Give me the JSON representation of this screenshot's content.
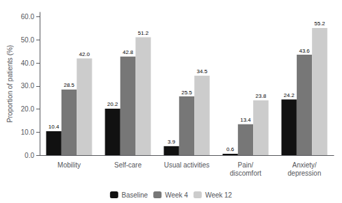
{
  "chart_data": {
    "type": "bar",
    "categories": [
      "Mobility",
      "Self-care",
      "Usual activities",
      "Pain/\ndiscomfort",
      "Anxiety/\ndepression"
    ],
    "series": [
      {
        "name": "Baseline",
        "color": "#111111",
        "values": [
          10.4,
          20.2,
          3.9,
          0.6,
          24.2
        ]
      },
      {
        "name": "Week 4",
        "color": "#777777",
        "values": [
          28.5,
          42.8,
          25.5,
          13.4,
          43.6
        ]
      },
      {
        "name": "Week 12",
        "color": "#cccccc",
        "values": [
          42.0,
          51.2,
          34.5,
          23.8,
          55.2
        ],
        "value_labels": [
          "42.0",
          "51.2",
          "34.5",
          "23.8",
          "55.2"
        ]
      }
    ],
    "ylabel": "Proportion of patients (%)",
    "ylim": [
      0,
      62
    ],
    "yticks": [
      {
        "value": 0,
        "label": "0.0"
      },
      {
        "value": 10,
        "label": "10.0"
      },
      {
        "value": 20,
        "label": "20.0"
      },
      {
        "value": 30,
        "label": "30.0"
      },
      {
        "value": 40,
        "label": "40.0"
      },
      {
        "value": 50,
        "label": "50.0"
      },
      {
        "value": 60,
        "label": "60.0"
      }
    ],
    "data_labels": true,
    "grid": false,
    "legend": "bottom"
  }
}
